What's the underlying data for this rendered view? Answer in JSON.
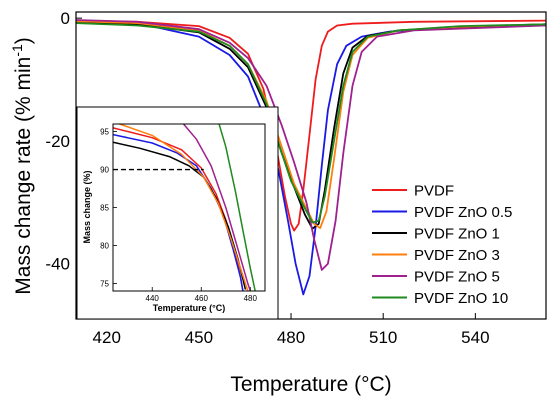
{
  "chart_data": [
    {
      "type": "line",
      "xlabel": "Temperature (°C)",
      "ylabel": "Mass change rate (% min-1)",
      "ylabel_main": "Mass change rate (% min",
      "ylabel_sup": "-1",
      "ylabel_close": ")",
      "xlim": [
        410,
        563
      ],
      "ylim": [
        -49,
        1
      ],
      "xticks": [
        420,
        450,
        480,
        510,
        540
      ],
      "yticks": [
        0,
        -20,
        -40
      ],
      "legend_position": "center-right",
      "series": [
        {
          "name": "PVDF",
          "color": "#ee1c1c",
          "points": [
            [
              410,
              -0.4
            ],
            [
              430,
              -0.6
            ],
            [
              450,
              -1.3
            ],
            [
              460,
              -3.2
            ],
            [
              466,
              -5.8
            ],
            [
              471,
              -11.5
            ],
            [
              475,
              -20.5
            ],
            [
              478,
              -29
            ],
            [
              480,
              -33.5
            ],
            [
              481,
              -34.6
            ],
            [
              482.5,
              -33.5
            ],
            [
              484,
              -28
            ],
            [
              486,
              -19
            ],
            [
              488,
              -10
            ],
            [
              490,
              -4.5
            ],
            [
              492,
              -2.2
            ],
            [
              495,
              -1.2
            ],
            [
              500,
              -0.9
            ],
            [
              520,
              -0.6
            ],
            [
              563,
              -0.4
            ]
          ]
        },
        {
          "name": "PVDF ZnO 0.5",
          "color": "#1a1ae6",
          "points": [
            [
              410,
              -0.4
            ],
            [
              430,
              -0.8
            ],
            [
              450,
              -3
            ],
            [
              460,
              -6
            ],
            [
              466,
              -9.5
            ],
            [
              472,
              -17
            ],
            [
              476,
              -25
            ],
            [
              479,
              -33
            ],
            [
              481.5,
              -40
            ],
            [
              484,
              -45
            ],
            [
              486,
              -42
            ],
            [
              488,
              -34
            ],
            [
              490,
              -24
            ],
            [
              492,
              -15
            ],
            [
              495,
              -7.5
            ],
            [
              498,
              -4.5
            ],
            [
              503,
              -3
            ],
            [
              512,
              -2.2
            ],
            [
              530,
              -1.5
            ],
            [
              563,
              -1
            ]
          ]
        },
        {
          "name": "PVDF ZnO 1",
          "color": "#000000",
          "points": [
            [
              410,
              -0.6
            ],
            [
              430,
              -1
            ],
            [
              450,
              -2.3
            ],
            [
              460,
              -5
            ],
            [
              466,
              -8
            ],
            [
              472,
              -14.5
            ],
            [
              477,
              -22
            ],
            [
              481,
              -27.5
            ],
            [
              484.5,
              -32
            ],
            [
              487,
              -34.3
            ],
            [
              489,
              -33.5
            ],
            [
              491,
              -28
            ],
            [
              494,
              -18
            ],
            [
              497,
              -9
            ],
            [
              500,
              -4.8
            ],
            [
              505,
              -2.9
            ],
            [
              515,
              -2
            ],
            [
              535,
              -1.5
            ],
            [
              563,
              -1
            ]
          ]
        },
        {
          "name": "PVDF ZnO 3",
          "color": "#ff7f0e",
          "points": [
            [
              410,
              -0.5
            ],
            [
              430,
              -0.8
            ],
            [
              450,
              -2
            ],
            [
              460,
              -4.5
            ],
            [
              466,
              -7.5
            ],
            [
              472,
              -13.5
            ],
            [
              477,
              -21
            ],
            [
              481,
              -27
            ],
            [
              485,
              -31
            ],
            [
              487.5,
              -33.5
            ],
            [
              489.5,
              -34.2
            ],
            [
              491.5,
              -31.5
            ],
            [
              494,
              -23
            ],
            [
              497,
              -12
            ],
            [
              500,
              -6
            ],
            [
              505,
              -3.2
            ],
            [
              515,
              -2
            ],
            [
              535,
              -1.4
            ],
            [
              563,
              -1
            ]
          ]
        },
        {
          "name": "PVDF ZnO 5",
          "color": "#a0208f",
          "points": [
            [
              410,
              -0.3
            ],
            [
              430,
              -0.6
            ],
            [
              450,
              -1.8
            ],
            [
              460,
              -4
            ],
            [
              466,
              -6.5
            ],
            [
              472,
              -11
            ],
            [
              477,
              -17.5
            ],
            [
              481,
              -23.5
            ],
            [
              485,
              -30
            ],
            [
              487.5,
              -36
            ],
            [
              490,
              -41
            ],
            [
              492,
              -40
            ],
            [
              494.5,
              -33
            ],
            [
              497,
              -22
            ],
            [
              500,
              -11
            ],
            [
              503,
              -5.5
            ],
            [
              508,
              -3
            ],
            [
              520,
              -2
            ],
            [
              563,
              -1.2
            ]
          ]
        },
        {
          "name": "PVDF ZnO 10",
          "color": "#1f8a1f",
          "points": [
            [
              410,
              -0.8
            ],
            [
              430,
              -1.2
            ],
            [
              450,
              -2.2
            ],
            [
              460,
              -4.5
            ],
            [
              466,
              -7.5
            ],
            [
              472,
              -14
            ],
            [
              476,
              -20.5
            ],
            [
              480,
              -26.5
            ],
            [
              484,
              -30.5
            ],
            [
              487,
              -33.3
            ],
            [
              489,
              -33
            ],
            [
              491,
              -29
            ],
            [
              494,
              -20
            ],
            [
              497,
              -11
            ],
            [
              500,
              -5.5
            ],
            [
              505,
              -3
            ],
            [
              515,
              -2
            ],
            [
              535,
              -1.3
            ],
            [
              563,
              -1
            ]
          ]
        }
      ]
    },
    {
      "type": "line",
      "xlabel": "Temperature (°C)",
      "ylabel": "Mass change (%)",
      "xlim": [
        424,
        486
      ],
      "ylim": [
        74,
        96
      ],
      "xticks": [
        440,
        460,
        480
      ],
      "yticks": [
        75,
        80,
        85,
        90,
        95
      ],
      "reference_line": {
        "y": 90,
        "x_from": 424,
        "x_to": 461,
        "style": "dashed"
      },
      "series": [
        {
          "name": "PVDF",
          "color": "#ee1c1c",
          "points": [
            [
              424,
              95.5
            ],
            [
              440,
              94.2
            ],
            [
              452,
              92.6
            ],
            [
              460,
              90.2
            ],
            [
              466,
              86.8
            ],
            [
              470,
              83.4
            ],
            [
              474,
              78.8
            ],
            [
              476,
              75.8
            ],
            [
              477,
              74
            ]
          ]
        },
        {
          "name": "PVDF ZnO 0.5",
          "color": "#1a1ae6",
          "points": [
            [
              424,
              94.6
            ],
            [
              440,
              93.5
            ],
            [
              450,
              92.2
            ],
            [
              458,
              90.5
            ],
            [
              464,
              87.5
            ],
            [
              469,
              84
            ],
            [
              473,
              79.5
            ],
            [
              476,
              75.8
            ],
            [
              477,
              74
            ]
          ]
        },
        {
          "name": "PVDF ZnO 1",
          "color": "#000000",
          "points": [
            [
              424,
              93.6
            ],
            [
              435,
              92.8
            ],
            [
              447,
              91.7
            ],
            [
              455,
              90.5
            ],
            [
              461,
              89
            ],
            [
              466,
              86.3
            ],
            [
              471,
              82.5
            ],
            [
              475,
              78.2
            ],
            [
              478,
              74.2
            ]
          ]
        },
        {
          "name": "PVDF ZnO 3",
          "color": "#ff7f0e",
          "points": [
            [
              424,
              96.3
            ],
            [
              440,
              94.5
            ],
            [
              452,
              92
            ],
            [
              461,
              89
            ],
            [
              467,
              85.5
            ],
            [
              472,
              81
            ],
            [
              476,
              77
            ],
            [
              479,
              74
            ]
          ]
        },
        {
          "name": "PVDF ZnO 5",
          "color": "#a0208f",
          "points": [
            [
              452,
              96.3
            ],
            [
              458,
              94
            ],
            [
              464,
              90.5
            ],
            [
              470,
              85
            ],
            [
              475,
              79.5
            ],
            [
              479,
              75
            ],
            [
              480,
              74
            ]
          ]
        },
        {
          "name": "PVDF ZnO 10",
          "color": "#1f8a1f",
          "points": [
            [
              467,
              96.3
            ],
            [
              470,
              93
            ],
            [
              474,
              87
            ],
            [
              477,
              82
            ],
            [
              480,
              77
            ],
            [
              482,
              74
            ]
          ]
        }
      ]
    }
  ]
}
